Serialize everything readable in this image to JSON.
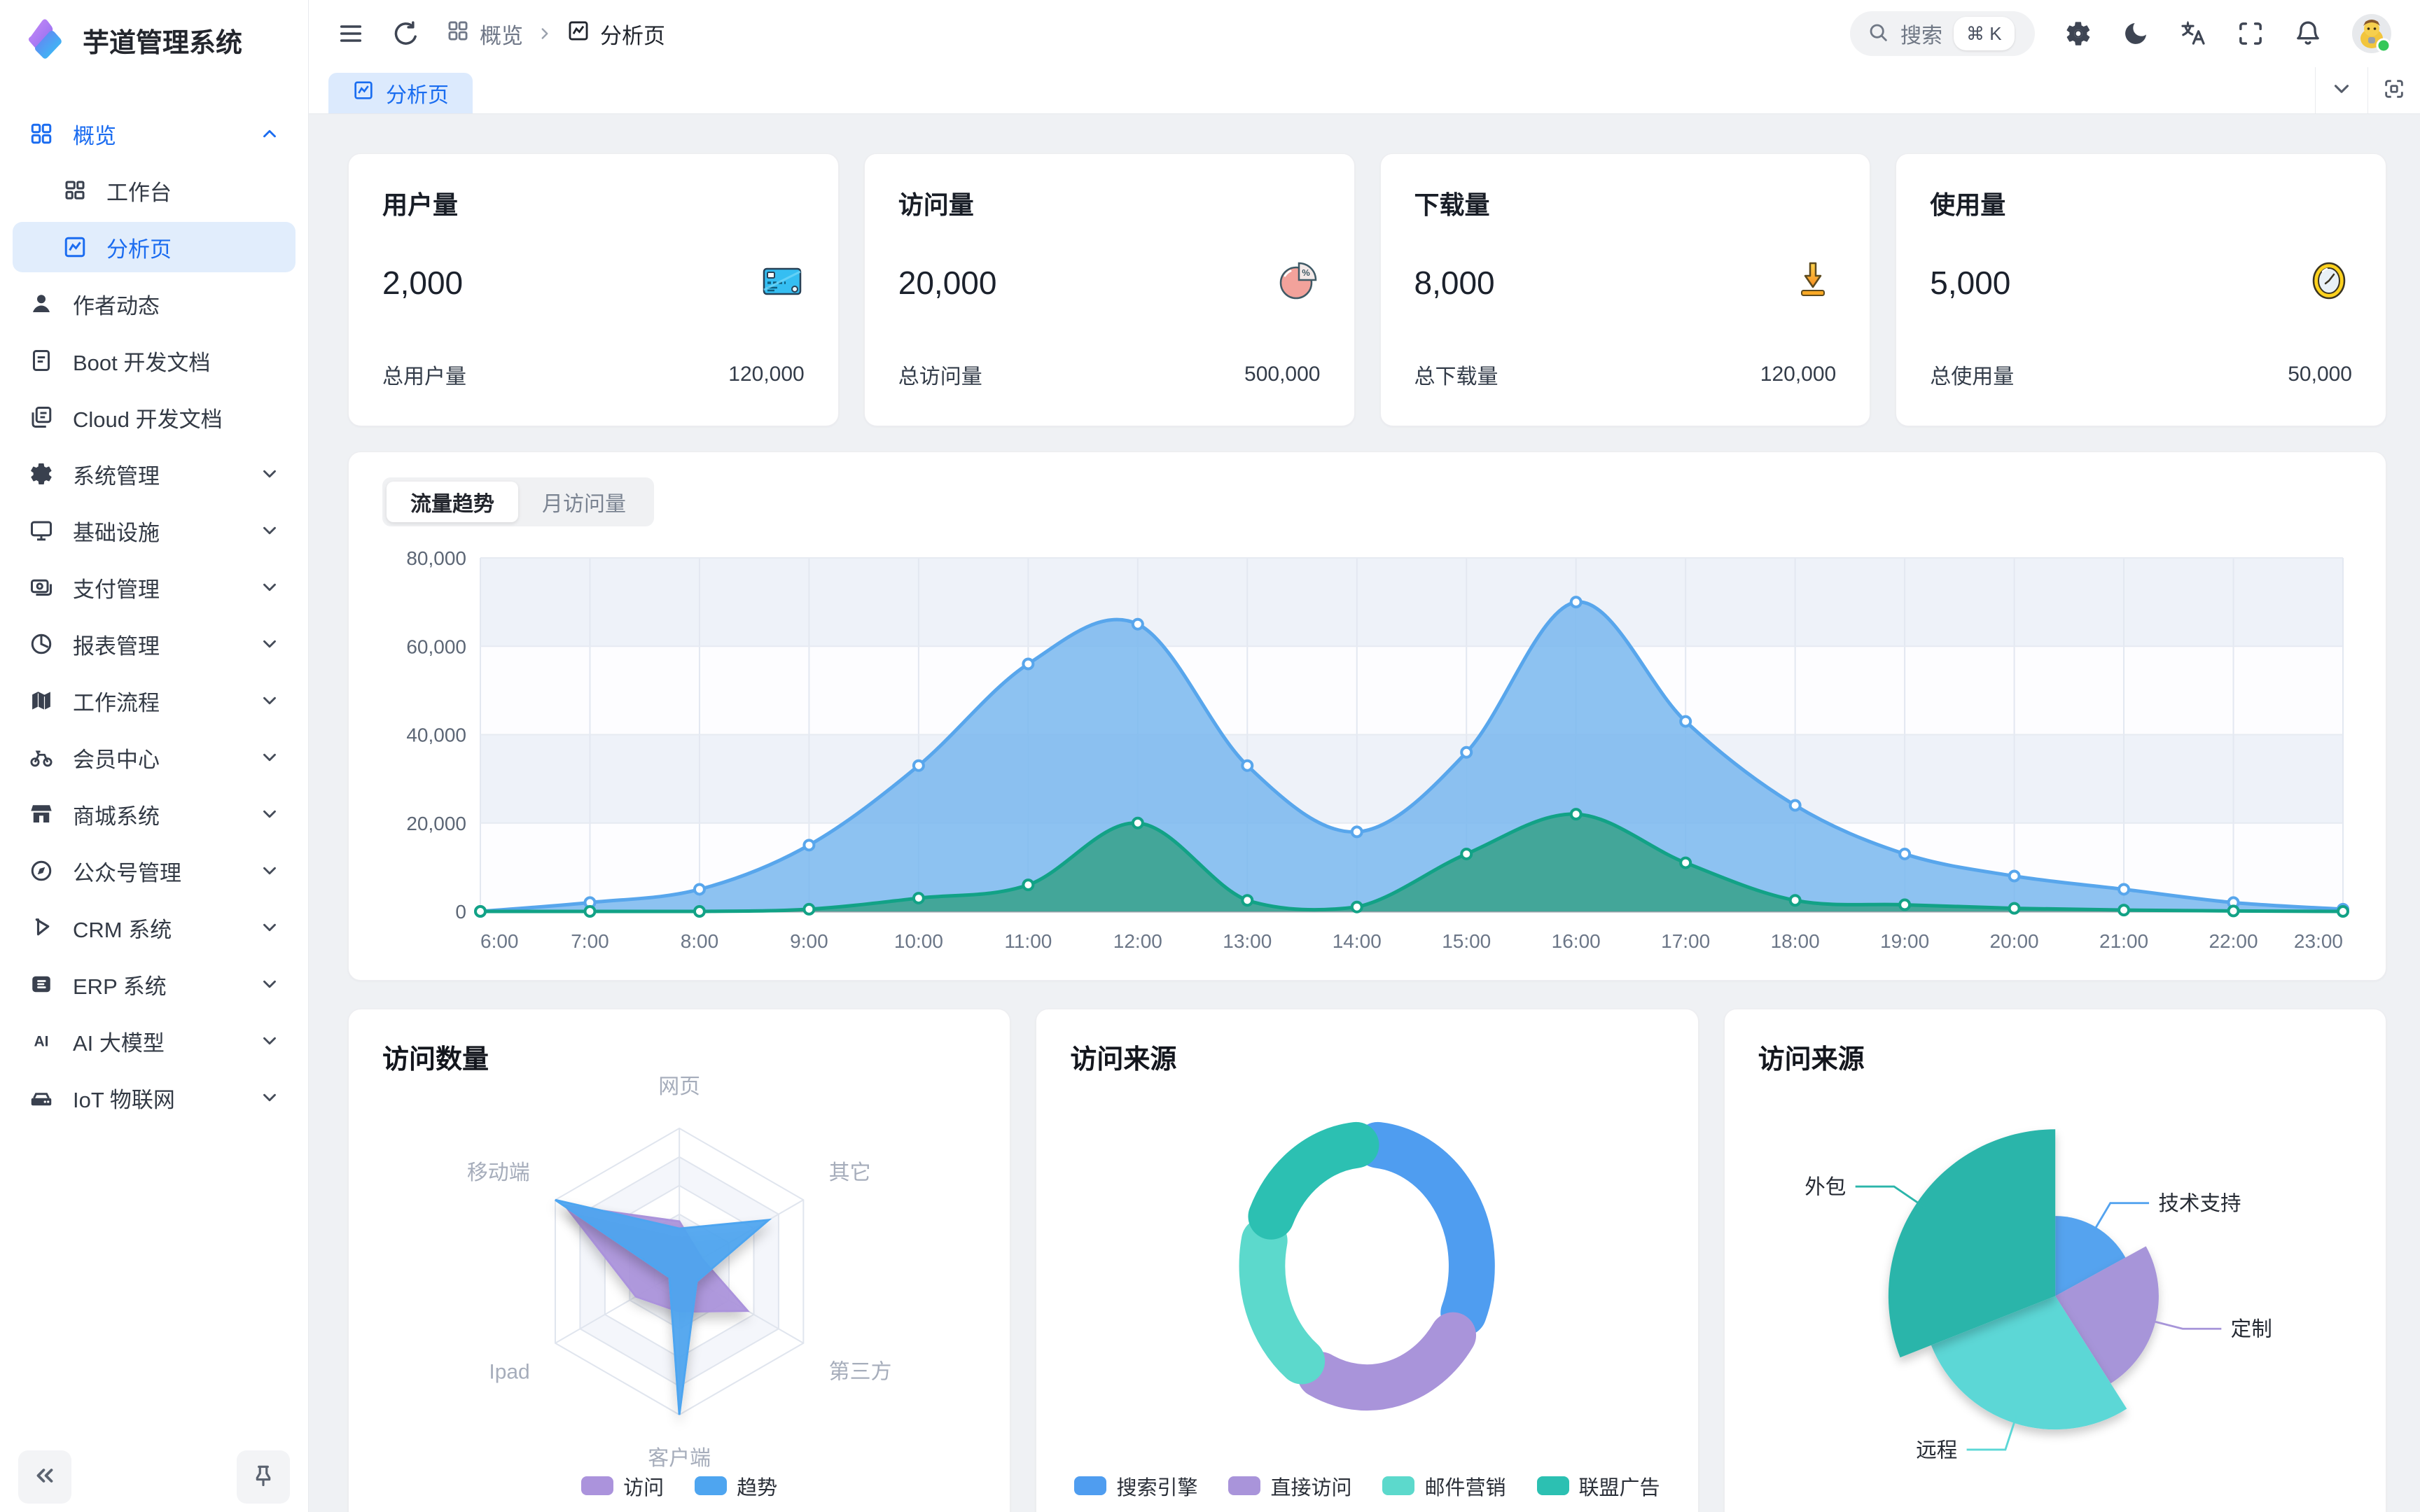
{
  "app": {
    "title": "芋道管理系统"
  },
  "sidebar": {
    "items": [
      {
        "key": "overview",
        "icon": "grid",
        "label": "概览",
        "chevron": "up",
        "primary": true,
        "sub": false,
        "selected": false
      },
      {
        "key": "workbench",
        "icon": "workbench",
        "label": "工作台",
        "chevron": "",
        "primary": false,
        "sub": true,
        "selected": false
      },
      {
        "key": "analysis",
        "icon": "chart",
        "label": "分析页",
        "chevron": "",
        "primary": false,
        "sub": true,
        "selected": true
      },
      {
        "key": "author-news",
        "icon": "user",
        "label": "作者动态",
        "chevron": "",
        "primary": false,
        "sub": false,
        "selected": false
      },
      {
        "key": "boot-doc",
        "icon": "doc",
        "label": "Boot 开发文档",
        "chevron": "",
        "primary": false,
        "sub": false,
        "selected": false
      },
      {
        "key": "cloud-doc",
        "icon": "docs",
        "label": "Cloud 开发文档",
        "chevron": "",
        "primary": false,
        "sub": false,
        "selected": false
      },
      {
        "key": "system",
        "icon": "gear",
        "label": "系统管理",
        "chevron": "down",
        "primary": false,
        "sub": false,
        "selected": false
      },
      {
        "key": "infra",
        "icon": "monitor",
        "label": "基础设施",
        "chevron": "down",
        "primary": false,
        "sub": false,
        "selected": false
      },
      {
        "key": "payment",
        "icon": "payment",
        "label": "支付管理",
        "chevron": "down",
        "primary": false,
        "sub": false,
        "selected": false
      },
      {
        "key": "report",
        "icon": "pie",
        "label": "报表管理",
        "chevron": "down",
        "primary": false,
        "sub": false,
        "selected": false
      },
      {
        "key": "workflow",
        "icon": "map",
        "label": "工作流程",
        "chevron": "down",
        "primary": false,
        "sub": false,
        "selected": false
      },
      {
        "key": "member",
        "icon": "bike",
        "label": "会员中心",
        "chevron": "down",
        "primary": false,
        "sub": false,
        "selected": false
      },
      {
        "key": "mall",
        "icon": "shop",
        "label": "商城系统",
        "chevron": "down",
        "primary": false,
        "sub": false,
        "selected": false
      },
      {
        "key": "mp",
        "icon": "compass",
        "label": "公众号管理",
        "chevron": "down",
        "primary": false,
        "sub": false,
        "selected": false
      },
      {
        "key": "crm",
        "icon": "crm",
        "label": "CRM 系统",
        "chevron": "down",
        "primary": false,
        "sub": false,
        "selected": false
      },
      {
        "key": "erp",
        "icon": "erp",
        "label": "ERP 系统",
        "chevron": "down",
        "primary": false,
        "sub": false,
        "selected": false
      },
      {
        "key": "ai",
        "icon": "ai",
        "label": "AI 大模型",
        "chevron": "down",
        "primary": false,
        "sub": false,
        "selected": false
      },
      {
        "key": "iot",
        "icon": "iot",
        "label": "IoT 物联网",
        "chevron": "down",
        "primary": false,
        "sub": false,
        "selected": false
      }
    ]
  },
  "header": {
    "breadcrumb": [
      "概览",
      "分析页"
    ],
    "search_placeholder": "搜索",
    "search_kbd": "⌘ K"
  },
  "tabbar": {
    "active_tab": "分析页"
  },
  "stats": [
    {
      "title": "用户量",
      "value": "2,000",
      "footer_label": "总用户量",
      "footer_value": "120,000"
    },
    {
      "title": "访问量",
      "value": "20,000",
      "footer_label": "总访问量",
      "footer_value": "500,000"
    },
    {
      "title": "下载量",
      "value": "8,000",
      "footer_label": "总下载量",
      "footer_value": "120,000"
    },
    {
      "title": "使用量",
      "value": "5,000",
      "footer_label": "总使用量",
      "footer_value": "50,000"
    }
  ],
  "trend": {
    "tabs": [
      "流量趋势",
      "月访问量"
    ],
    "active": 0
  },
  "cards": {
    "radar_title": "访问数量",
    "donut_title": "访问来源",
    "rose_title": "访问来源"
  },
  "chart_data": [
    {
      "id": "traffic-trend",
      "type": "area",
      "title": "流量趋势",
      "x": [
        "6:00",
        "7:00",
        "8:00",
        "9:00",
        "10:00",
        "11:00",
        "12:00",
        "13:00",
        "14:00",
        "15:00",
        "16:00",
        "17:00",
        "18:00",
        "19:00",
        "20:00",
        "21:00",
        "22:00",
        "23:00"
      ],
      "ylim": [
        0,
        80000
      ],
      "yticks": [
        0,
        20000,
        40000,
        60000,
        80000
      ],
      "grid": true,
      "legend_position": "none",
      "series": [
        {
          "color": "#58a6ec",
          "fill": "#79b7ef",
          "fill_opacity": 0.85,
          "values": [
            0,
            2000,
            5000,
            15000,
            33000,
            56000,
            65000,
            33000,
            18000,
            36000,
            70000,
            43000,
            24000,
            13000,
            8000,
            5000,
            2000,
            500
          ]
        },
        {
          "color": "#12a286",
          "fill": "#3fa493",
          "fill_opacity": 0.95,
          "values": [
            0,
            0,
            0,
            500,
            3000,
            6000,
            20000,
            2500,
            1000,
            13000,
            22000,
            11000,
            2500,
            1500,
            700,
            300,
            100,
            0
          ]
        }
      ]
    },
    {
      "id": "visit-count-radar",
      "type": "radar",
      "title": "访问数量",
      "indicators": [
        "网页",
        "其它",
        "第三方",
        "客户端",
        "Ipad",
        "移动端"
      ],
      "max": 100,
      "legend_position": "bottom",
      "series": [
        {
          "name": "访问",
          "color": "#ab93dc",
          "values": [
            35,
            18,
            55,
            28,
            35,
            92
          ]
        },
        {
          "name": "趋势",
          "color": "#4ea5f0",
          "values": [
            30,
            72,
            14,
            100,
            8,
            100
          ]
        }
      ]
    },
    {
      "id": "visit-source-donut",
      "type": "pie",
      "subtype": "donut",
      "title": "访问来源",
      "legend_position": "bottom",
      "slices": [
        {
          "name": "搜索引擎",
          "value": 33,
          "color": "#4f9df0"
        },
        {
          "name": "直接访问",
          "value": 26,
          "color": "#a994da"
        },
        {
          "name": "邮件营销",
          "value": 21,
          "color": "#5cd9cc"
        },
        {
          "name": "联盟广告",
          "value": 20,
          "color": "#2cc0b2"
        }
      ]
    },
    {
      "id": "visit-source-rose",
      "type": "pie",
      "subtype": "rose",
      "title": "访问来源",
      "legend_position": "none",
      "slices": [
        {
          "name": "技术支持",
          "value": 17,
          "color": "#54a3ef",
          "radius": 0.48
        },
        {
          "name": "定制",
          "value": 24,
          "color": "#a795d9",
          "radius": 0.62
        },
        {
          "name": "远程",
          "value": 28,
          "color": "#5bd7d6",
          "radius": 0.8
        },
        {
          "name": "外包",
          "value": 31,
          "color": "#2bb5aa",
          "radius": 1.0
        }
      ]
    }
  ]
}
